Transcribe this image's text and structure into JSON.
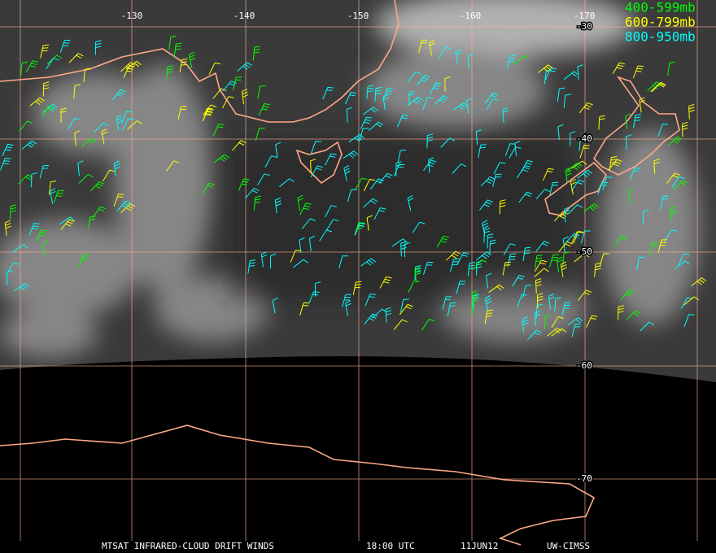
{
  "legend": [
    {
      "label": "400-599mb",
      "color": "#00ff00"
    },
    {
      "label": "600-799mb",
      "color": "#ffff00"
    },
    {
      "label": "800-950mb",
      "color": "#00ffff"
    }
  ],
  "lon_labels": [
    "-130",
    "-140",
    "-150",
    "-160",
    "-170"
  ],
  "lat_labels": [
    "-30",
    "-40",
    "-50",
    "-60",
    "-70"
  ],
  "footer": [
    "MTSAT INFRARED-CLOUD DRIFT WINDS",
    "18:00 UTC",
    "11JUN12",
    "UW-CIMSS"
  ]
}
